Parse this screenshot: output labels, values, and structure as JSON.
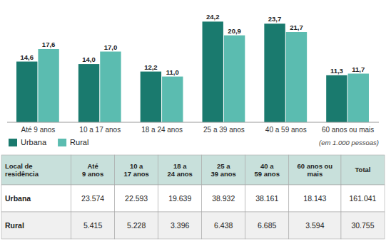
{
  "chart_data": {
    "type": "bar",
    "categories": [
      "Até 9 anos",
      "10 a 17 anos",
      "18 a 24 anos",
      "25 a 39 anos",
      "40 a 59 anos",
      "60 anos ou mais"
    ],
    "series": [
      {
        "name": "Urbana",
        "color": "#1a7a6e",
        "values": [
          14.6,
          14.0,
          12.2,
          24.2,
          23.7,
          11.3
        ],
        "value_labels": [
          "14,6",
          "14,0",
          "12,2",
          "24,2",
          "23,7",
          "11,3"
        ]
      },
      {
        "name": "Rural",
        "color": "#5bbcb0",
        "values": [
          17.6,
          17.0,
          11.0,
          20.9,
          21.7,
          11.7
        ],
        "value_labels": [
          "17,6",
          "17,0",
          "11,0",
          "20,9",
          "21,7",
          "11,7"
        ]
      }
    ],
    "ylim": [
      0,
      27
    ],
    "data_labels": true,
    "tick_labels": "x",
    "grid": false,
    "legend": "bottom-left",
    "note": "(em 1.000 pessoas)",
    "table": {
      "headers": [
        "Local de\nresidência",
        "Até\n9 anos",
        "10 a\n17 anos",
        "18 a\n24 anos",
        "25 a\n39 anos",
        "40 a\n59 anos",
        "60 anos ou\nmais",
        "Total"
      ],
      "rows": [
        [
          "Urbana",
          "23.574",
          "22.593",
          "19.639",
          "38.932",
          "38.161",
          "18.143",
          "161.041"
        ],
        [
          "Rural",
          "5.415",
          "5.228",
          "3.396",
          "6.438",
          "6.685",
          "3.594",
          "30.755"
        ]
      ]
    }
  }
}
